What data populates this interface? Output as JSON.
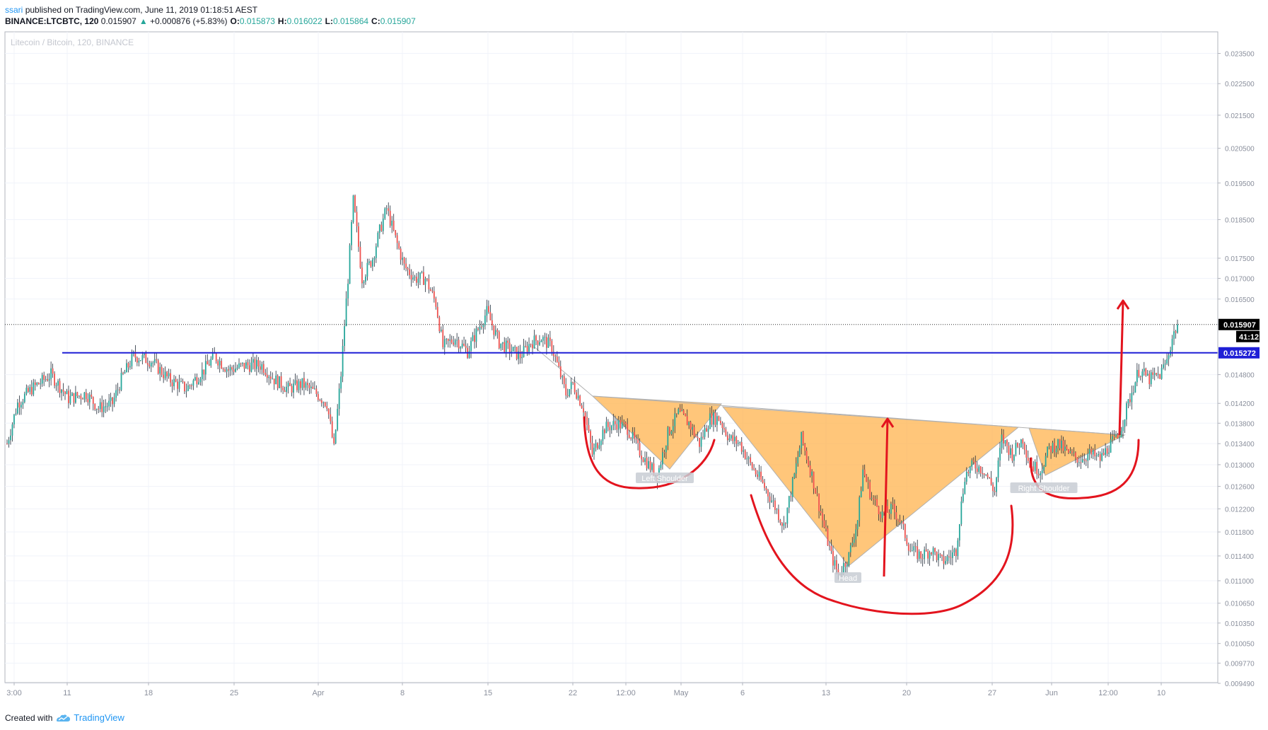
{
  "header": {
    "user": "ssari",
    "published": "published on TradingView.com, June 11, 2019 01:18:51 AEST",
    "symbol": "BINANCE:LTCBTC, 120",
    "last": "0.015907",
    "change_arrow": "▲",
    "change": "+0.000876 (+5.83%)",
    "o_label": "O:",
    "o": "0.015873",
    "h_label": "H:",
    "h": "0.016022",
    "l_label": "L:",
    "l": "0.015864",
    "c_label": "C:",
    "c": "0.015907"
  },
  "footer": {
    "created_with": "Created with",
    "brand": "TradingView"
  },
  "colors": {
    "up": "#26a69a",
    "down": "#ef5350",
    "level_line": "#1f1fd6",
    "pattern_fill": "#ffb34d",
    "arc": "#e3141e",
    "label_bg": "#c8ccd4"
  },
  "chart_data": {
    "type": "candlestick",
    "title": "Litecoin / Bitcoin, 120, BINANCE",
    "y_scale": "log",
    "ylim": [
      0.00949,
      0.02385
    ],
    "y_ticks": [
      "0.023500",
      "0.022500",
      "0.021500",
      "0.020500",
      "0.019500",
      "0.018500",
      "0.017500",
      "0.017000",
      "0.016500",
      "0.015907",
      "0.015272",
      "0.014800",
      "0.014200",
      "0.013800",
      "0.013400",
      "0.013000",
      "0.012600",
      "0.012200",
      "0.011800",
      "0.011400",
      "0.011000",
      "0.010650",
      "0.010350",
      "0.010050",
      "0.009770",
      "0.009490"
    ],
    "x_ticks": [
      "3:00",
      "11",
      "18",
      "25",
      "Apr",
      "8",
      "15",
      "22",
      "12:00",
      "May",
      "6",
      "13",
      "20",
      "27",
      "Jun",
      "12:00",
      "10"
    ],
    "price_points": [
      [
        0,
        0.0134
      ],
      [
        6,
        0.0142
      ],
      [
        14,
        0.0145
      ],
      [
        25,
        0.0148
      ],
      [
        35,
        0.0143
      ],
      [
        45,
        0.0144
      ],
      [
        52,
        0.0141
      ],
      [
        60,
        0.0142
      ],
      [
        65,
        0.0147
      ],
      [
        72,
        0.0152
      ],
      [
        82,
        0.0151
      ],
      [
        92,
        0.0147
      ],
      [
        102,
        0.0145
      ],
      [
        112,
        0.0149
      ],
      [
        118,
        0.0152
      ],
      [
        126,
        0.0149
      ],
      [
        136,
        0.015
      ],
      [
        145,
        0.015
      ],
      [
        152,
        0.0147
      ],
      [
        160,
        0.0145
      ],
      [
        168,
        0.0146
      ],
      [
        176,
        0.0144
      ],
      [
        182,
        0.0142
      ],
      [
        186,
        0.0133
      ],
      [
        190,
        0.0148
      ],
      [
        194,
        0.017
      ],
      [
        197,
        0.019
      ],
      [
        202,
        0.017
      ],
      [
        208,
        0.0175
      ],
      [
        212,
        0.0182
      ],
      [
        216,
        0.0188
      ],
      [
        221,
        0.018
      ],
      [
        226,
        0.0173
      ],
      [
        232,
        0.017
      ],
      [
        238,
        0.017
      ],
      [
        244,
        0.0164
      ],
      [
        248,
        0.0154
      ],
      [
        255,
        0.0156
      ],
      [
        262,
        0.0153
      ],
      [
        268,
        0.0158
      ],
      [
        273,
        0.0162
      ],
      [
        280,
        0.0155
      ],
      [
        288,
        0.0153
      ],
      [
        292,
        0.0152
      ],
      [
        298,
        0.0155
      ],
      [
        304,
        0.0156
      ],
      [
        310,
        0.0154
      ],
      [
        314,
        0.0149
      ],
      [
        318,
        0.0144
      ],
      [
        322,
        0.0146
      ],
      [
        328,
        0.0141
      ],
      [
        333,
        0.0132
      ],
      [
        340,
        0.0137
      ],
      [
        347,
        0.0138
      ],
      [
        353,
        0.0137
      ],
      [
        359,
        0.0133
      ],
      [
        365,
        0.013
      ],
      [
        370,
        0.0128
      ],
      [
        376,
        0.0136
      ],
      [
        382,
        0.014
      ],
      [
        388,
        0.0138
      ],
      [
        394,
        0.0134
      ],
      [
        400,
        0.0139
      ],
      [
        405,
        0.0139
      ],
      [
        411,
        0.0135
      ],
      [
        417,
        0.0134
      ],
      [
        423,
        0.013
      ],
      [
        429,
        0.0127
      ],
      [
        436,
        0.0123
      ],
      [
        442,
        0.0119
      ],
      [
        448,
        0.0128
      ],
      [
        452,
        0.0135
      ],
      [
        458,
        0.0128
      ],
      [
        464,
        0.012
      ],
      [
        469,
        0.0114
      ],
      [
        473,
        0.0111
      ],
      [
        479,
        0.0114
      ],
      [
        484,
        0.012
      ],
      [
        487,
        0.0129
      ],
      [
        492,
        0.0124
      ],
      [
        498,
        0.0121
      ],
      [
        504,
        0.0122
      ],
      [
        508,
        0.012
      ],
      [
        514,
        0.0115
      ],
      [
        520,
        0.0114
      ],
      [
        526,
        0.0115
      ],
      [
        532,
        0.0113
      ],
      [
        537,
        0.0114
      ],
      [
        540,
        0.0115
      ],
      [
        545,
        0.0128
      ],
      [
        550,
        0.013
      ],
      [
        556,
        0.0129
      ],
      [
        562,
        0.0125
      ],
      [
        566,
        0.0135
      ],
      [
        572,
        0.0132
      ],
      [
        578,
        0.0135
      ],
      [
        582,
        0.013
      ],
      [
        588,
        0.0129
      ],
      [
        593,
        0.0133
      ],
      [
        598,
        0.0134
      ],
      [
        604,
        0.0132
      ],
      [
        610,
        0.0131
      ],
      [
        616,
        0.0132
      ],
      [
        622,
        0.0131
      ],
      [
        628,
        0.0134
      ],
      [
        632,
        0.0135
      ],
      [
        638,
        0.0142
      ],
      [
        644,
        0.0149
      ],
      [
        650,
        0.0147
      ],
      [
        656,
        0.0148
      ],
      [
        660,
        0.0151
      ],
      [
        663,
        0.0156
      ],
      [
        666,
        0.01591
      ]
    ],
    "current_price": 0.015907,
    "current_price_label": "0.015907",
    "countdown_label": "41:12",
    "level": 0.015272,
    "level_label": "0.015272",
    "annotations": [
      {
        "text": "Left Shoulder"
      },
      {
        "text": "Head"
      },
      {
        "text": "Right Shoulder"
      }
    ]
  }
}
